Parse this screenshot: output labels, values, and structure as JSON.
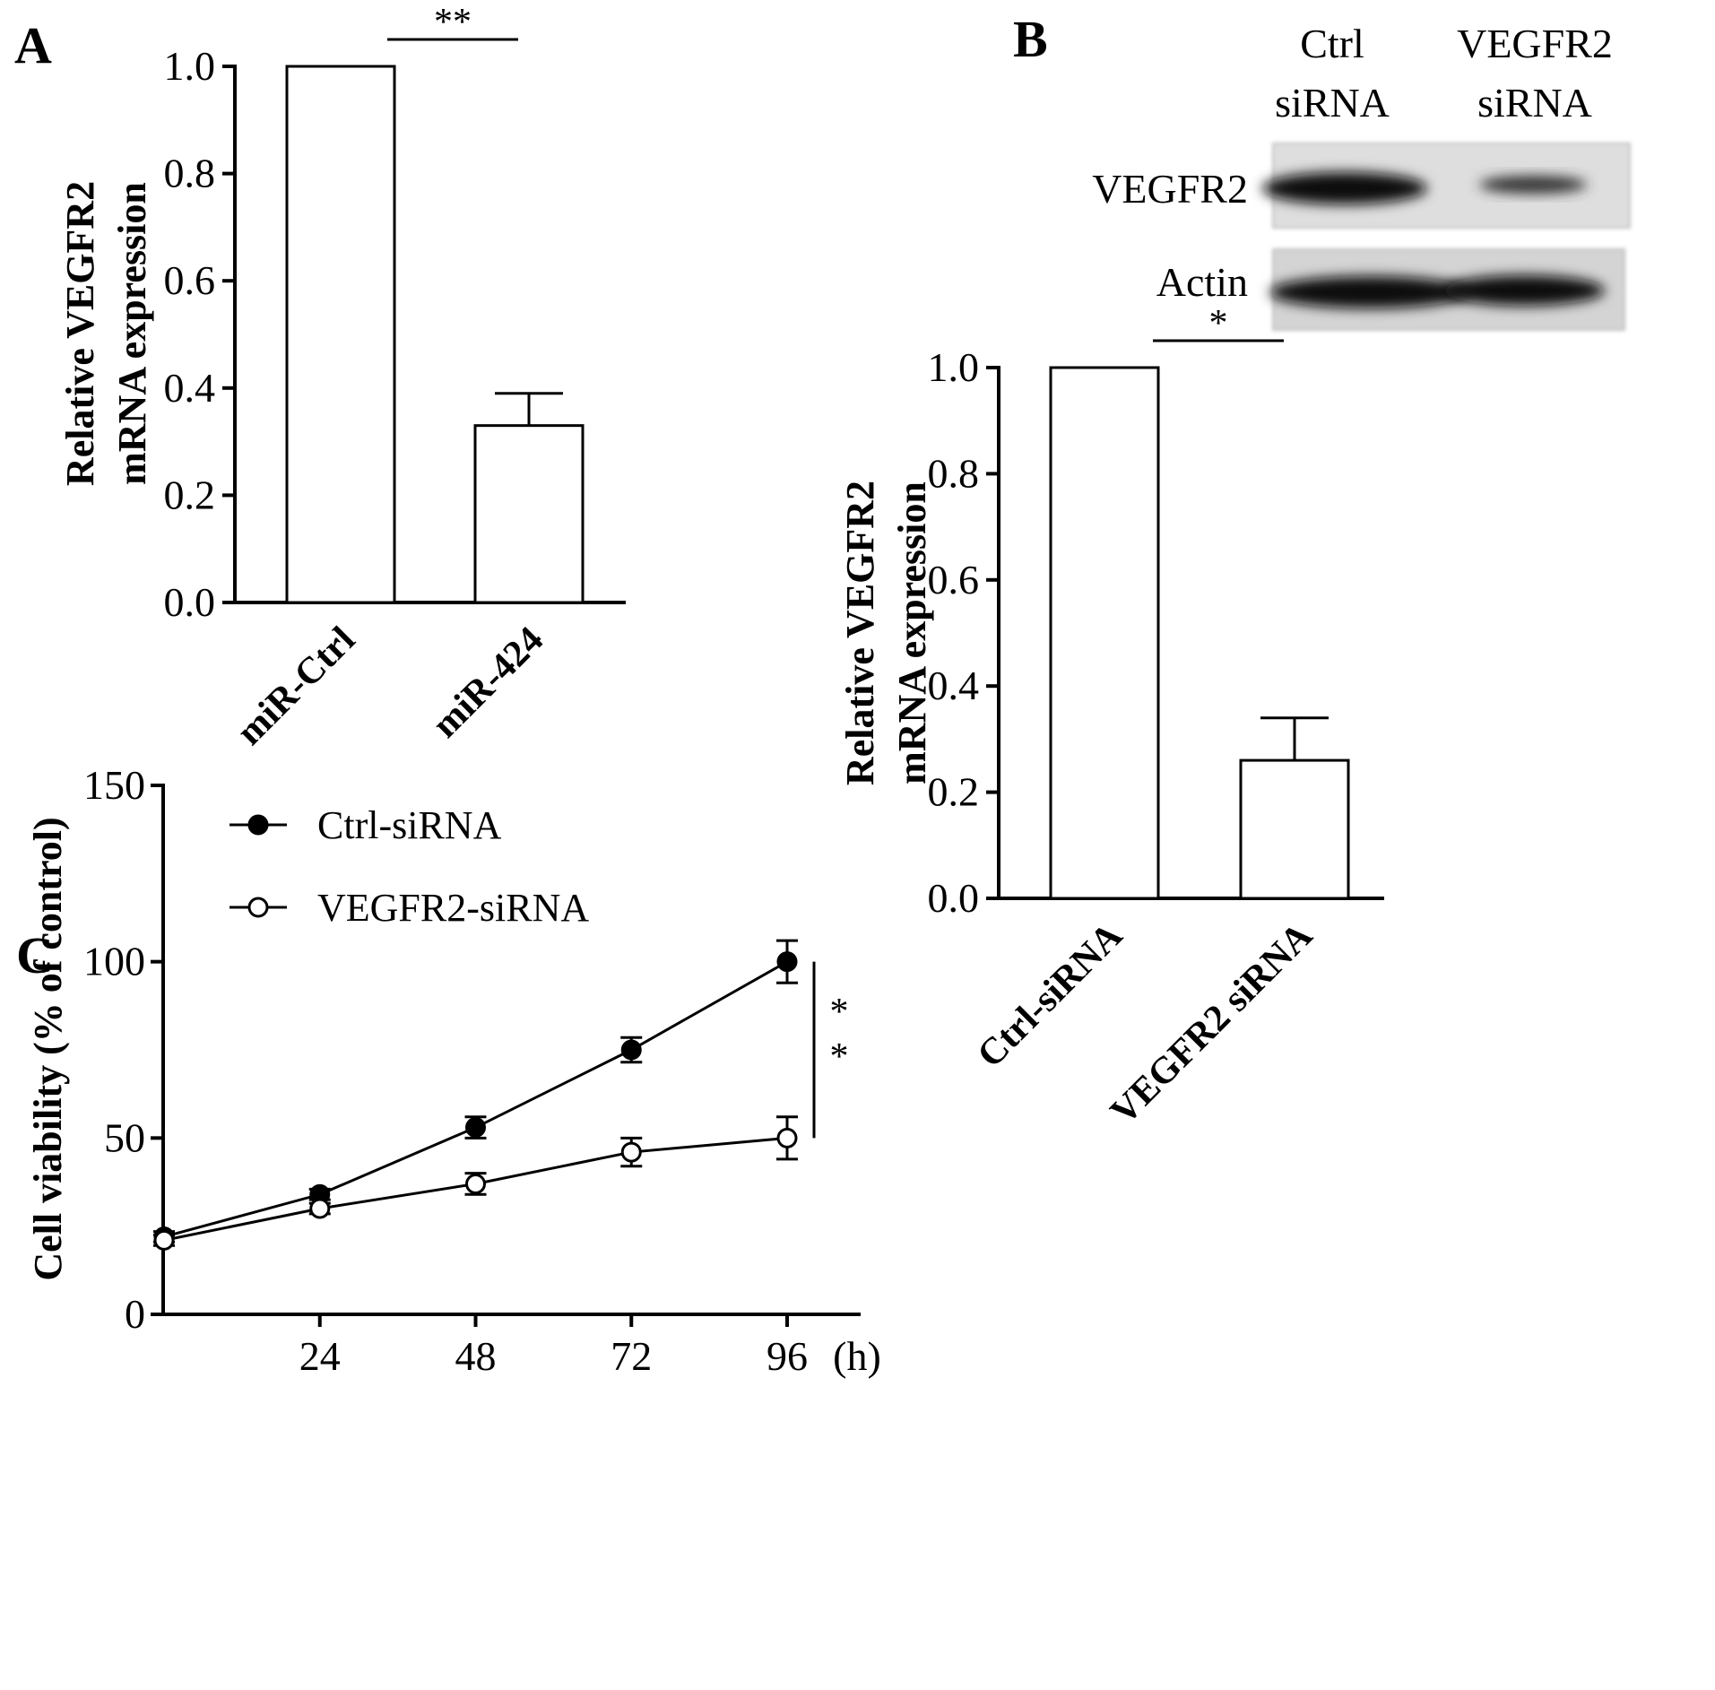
{
  "chart_data": [
    {
      "panel": "A",
      "type": "bar",
      "categories": [
        "miR-Ctrl",
        "miR-424"
      ],
      "values": [
        1.0,
        0.33
      ],
      "errors": [
        0,
        0.06
      ],
      "ylabel": [
        "Relative VEGFR2",
        "mRNA expression"
      ],
      "ylim": [
        0,
        1.0
      ],
      "yticks": [
        "0.0",
        "0.2",
        "0.4",
        "0.6",
        "0.8",
        "1.0"
      ],
      "significance": "**"
    },
    {
      "panel": "B",
      "type": "bar",
      "categories": [
        "Ctrl-siRNA",
        "VEGFR2 siRNA"
      ],
      "values": [
        1.0,
        0.26
      ],
      "errors": [
        0,
        0.08
      ],
      "ylabel": [
        "Relative VEGFR2",
        "mRNA expression"
      ],
      "ylim": [
        0,
        1.0
      ],
      "yticks": [
        "0.0",
        "0.2",
        "0.4",
        "0.6",
        "0.8",
        "1.0"
      ],
      "significance": "*",
      "western_blot": {
        "lanes": [
          [
            "Ctrl",
            "siRNA"
          ],
          [
            "VEGFR2",
            "siRNA"
          ]
        ],
        "rows": [
          "VEGFR2",
          "Actin"
        ]
      }
    },
    {
      "panel": "C",
      "type": "line",
      "x": [
        0,
        24,
        48,
        72,
        96
      ],
      "xticks": [
        "24",
        "48",
        "72",
        "96"
      ],
      "xunit": "(h)",
      "ylabel": "Cell viability  (% of control)",
      "ylim": [
        0,
        150
      ],
      "yticks": [
        "0",
        "50",
        "100",
        "150"
      ],
      "series": [
        {
          "name": "Ctrl-siRNA",
          "marker": "filled",
          "values": [
            22,
            34,
            53,
            75,
            100
          ],
          "errors": [
            1.5,
            1.5,
            3,
            3.5,
            6
          ]
        },
        {
          "name": "VEGFR2-siRNA",
          "marker": "open",
          "values": [
            21,
            30,
            37,
            46,
            50
          ],
          "errors": [
            1.5,
            1.5,
            3,
            4,
            6
          ]
        }
      ],
      "significance": "**"
    }
  ]
}
